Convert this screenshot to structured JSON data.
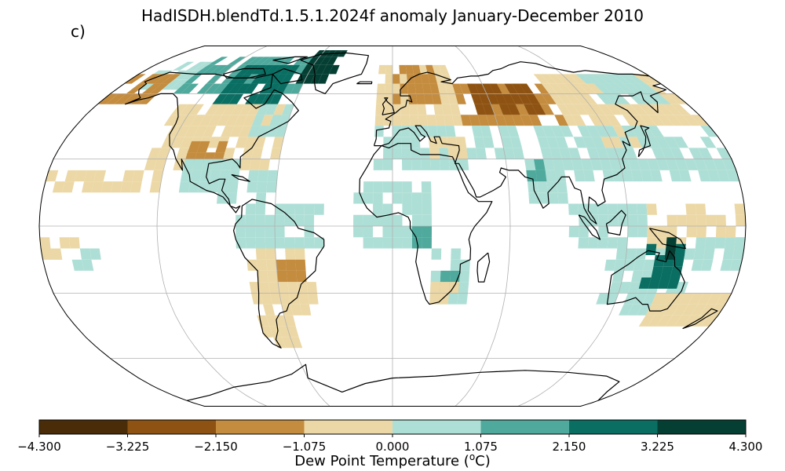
{
  "title": "HadISDH.blendTd.1.5.1.2024f anomaly January-December 2010",
  "panel_label": "c)",
  "colorbar": {
    "label_prefix": "Dew Point Temperature (",
    "label_sup": "o",
    "label_suffix": "C)",
    "ticks": [
      "−4.300",
      "−3.225",
      "−2.150",
      "−1.075",
      "0.000",
      "1.075",
      "2.150",
      "3.225",
      "4.300"
    ],
    "tick_values": [
      -4.3,
      -3.225,
      -2.15,
      -1.075,
      0.0,
      1.075,
      2.15,
      3.225,
      4.3
    ],
    "colors": [
      "#4a2d08",
      "#8e5312",
      "#c48c3f",
      "#ecd8a6",
      "#aedfd6",
      "#4fa99c",
      "#0a6e62",
      "#053f34"
    ]
  },
  "map": {
    "projection": "Robinson",
    "graticule": true,
    "colors": {
      "coast": "#000000",
      "grid": "#b0b0b0"
    },
    "anomaly_regions": [
      {
        "lat": [
          60,
          80
        ],
        "lon": [
          -140,
          -60
        ],
        "value": 1.5
      },
      {
        "lat": [
          55,
          75
        ],
        "lon": [
          -110,
          -70
        ],
        "value": 2.6
      },
      {
        "lat": [
          65,
          82
        ],
        "lon": [
          -65,
          -40
        ],
        "value": 3.5
      },
      {
        "lat": [
          62,
          75
        ],
        "lon": [
          -170,
          -140
        ],
        "value": 0.5
      },
      {
        "lat": [
          55,
          70
        ],
        "lon": [
          -180,
          -150
        ],
        "value": -1.6
      },
      {
        "lat": [
          25,
          55
        ],
        "lon": [
          -130,
          -60
        ],
        "value": -0.6
      },
      {
        "lat": [
          40,
          55
        ],
        "lon": [
          -80,
          -60
        ],
        "value": 0.6
      },
      {
        "lat": [
          28,
          38
        ],
        "lon": [
          -110,
          -90
        ],
        "value": -1.4
      },
      {
        "lat": [
          15,
          30
        ],
        "lon": [
          -110,
          -80
        ],
        "value": 0.5
      },
      {
        "lat": [
          10,
          25
        ],
        "lon": [
          -90,
          -60
        ],
        "value": 0.6
      },
      {
        "lat": [
          15,
          25
        ],
        "lon": [
          -180,
          -120
        ],
        "value": -0.5
      },
      {
        "lat": [
          -10,
          10
        ],
        "lon": [
          -80,
          -35
        ],
        "value": 0.4
      },
      {
        "lat": [
          -40,
          -10
        ],
        "lon": [
          -75,
          -40
        ],
        "value": -0.6
      },
      {
        "lat": [
          -25,
          -15
        ],
        "lon": [
          -60,
          -45
        ],
        "value": -1.3
      },
      {
        "lat": [
          -55,
          -40
        ],
        "lon": [
          -75,
          -55
        ],
        "value": -0.5
      },
      {
        "lat": [
          45,
          75
        ],
        "lon": [
          -10,
          40
        ],
        "value": -0.6
      },
      {
        "lat": [
          55,
          75
        ],
        "lon": [
          0,
          30
        ],
        "value": -1.3
      },
      {
        "lat": [
          45,
          65
        ],
        "lon": [
          40,
          100
        ],
        "value": -1.6
      },
      {
        "lat": [
          50,
          62
        ],
        "lon": [
          50,
          90
        ],
        "value": -2.6
      },
      {
        "lat": [
          25,
          45
        ],
        "lon": [
          -10,
          40
        ],
        "value": 0.5
      },
      {
        "lat": [
          30,
          40
        ],
        "lon": [
          20,
          40
        ],
        "value": -0.5
      },
      {
        "lat": [
          30,
          45
        ],
        "lon": [
          40,
          70
        ],
        "value": 0.5
      },
      {
        "lat": [
          35,
          45
        ],
        "lon": [
          110,
          150
        ],
        "value": -0.6
      },
      {
        "lat": [
          20,
          45
        ],
        "lon": [
          80,
          180
        ],
        "value": 0.4
      },
      {
        "lat": [
          45,
          70
        ],
        "lon": [
          100,
          180
        ],
        "value": -0.5
      },
      {
        "lat": [
          55,
          70
        ],
        "lon": [
          130,
          170
        ],
        "value": 0.5
      },
      {
        "lat": [
          10,
          30
        ],
        "lon": [
          70,
          90
        ],
        "value": 0.4
      },
      {
        "lat": [
          20,
          30
        ],
        "lon": [
          70,
          80
        ],
        "value": 1.5
      },
      {
        "lat": [
          -10,
          10
        ],
        "lon": [
          90,
          130
        ],
        "value": 0.5
      },
      {
        "lat": [
          -10,
          10
        ],
        "lon": [
          130,
          180
        ],
        "value": -0.5
      },
      {
        "lat": [
          -10,
          20
        ],
        "lon": [
          -20,
          20
        ],
        "value": 0.4
      },
      {
        "lat": [
          -10,
          0
        ],
        "lon": [
          10,
          20
        ],
        "value": 1.3
      },
      {
        "lat": [
          -35,
          -10
        ],
        "lon": [
          20,
          40
        ],
        "value": 0.4
      },
      {
        "lat": [
          -30,
          -20
        ],
        "lon": [
          25,
          35
        ],
        "value": 1.5
      },
      {
        "lat": [
          -35,
          -25
        ],
        "lon": [
          20,
          35
        ],
        "value": -0.5
      },
      {
        "lat": [
          -40,
          -10
        ],
        "lon": [
          110,
          155
        ],
        "value": 0.6
      },
      {
        "lat": [
          -28,
          -10
        ],
        "lon": [
          130,
          150
        ],
        "value": 2.3
      },
      {
        "lat": [
          -15,
          -5
        ],
        "lon": [
          140,
          145
        ],
        "value": 3.4
      },
      {
        "lat": [
          -45,
          -30
        ],
        "lon": [
          140,
          180
        ],
        "value": -0.5
      },
      {
        "lat": [
          -20,
          -5
        ],
        "lon": [
          155,
          180
        ],
        "value": 0.5
      },
      {
        "lat": [
          -20,
          -10
        ],
        "lon": [
          -180,
          -150
        ],
        "value": 0.5
      },
      {
        "lat": [
          -15,
          -5
        ],
        "lon": [
          -180,
          -160
        ],
        "value": -0.5
      }
    ]
  }
}
